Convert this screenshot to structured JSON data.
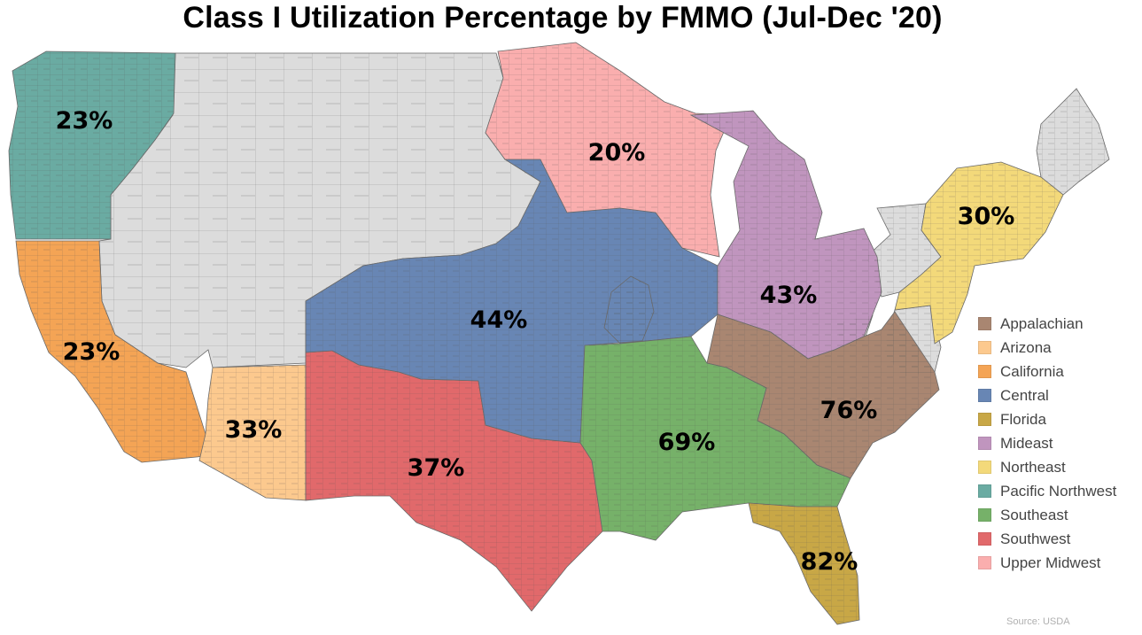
{
  "title": "Class I Utilization Percentage by FMMO (Jul-Dec '20)",
  "source": "Source: USDA",
  "nonmember_color": "#dcdcdc",
  "regions": [
    {
      "key": "appalachian",
      "name": "Appalachian",
      "color": "#a98671",
      "label": "76%"
    },
    {
      "key": "arizona",
      "name": "Arizona",
      "color": "#fcc98e",
      "label": "33%"
    },
    {
      "key": "california",
      "name": "California",
      "color": "#f4a455",
      "label": "23%"
    },
    {
      "key": "central",
      "name": "Central",
      "color": "#6886b4",
      "label": "44%"
    },
    {
      "key": "florida",
      "name": "Florida",
      "color": "#c8a746",
      "label": "82%"
    },
    {
      "key": "mideast",
      "name": "Mideast",
      "color": "#c095be",
      "label": "43%"
    },
    {
      "key": "northeast",
      "name": "Northeast",
      "color": "#f3d97a",
      "label": "30%"
    },
    {
      "key": "pacific_northwest",
      "name": "Pacific Northwest",
      "color": "#6aaba2",
      "label": "23%"
    },
    {
      "key": "southeast",
      "name": "Southeast",
      "color": "#76b169",
      "label": "69%"
    },
    {
      "key": "southwest",
      "name": "Southwest",
      "color": "#e1696b",
      "label": "37%"
    },
    {
      "key": "upper_midwest",
      "name": "Upper Midwest",
      "color": "#faaeae",
      "label": "20%"
    }
  ]
}
